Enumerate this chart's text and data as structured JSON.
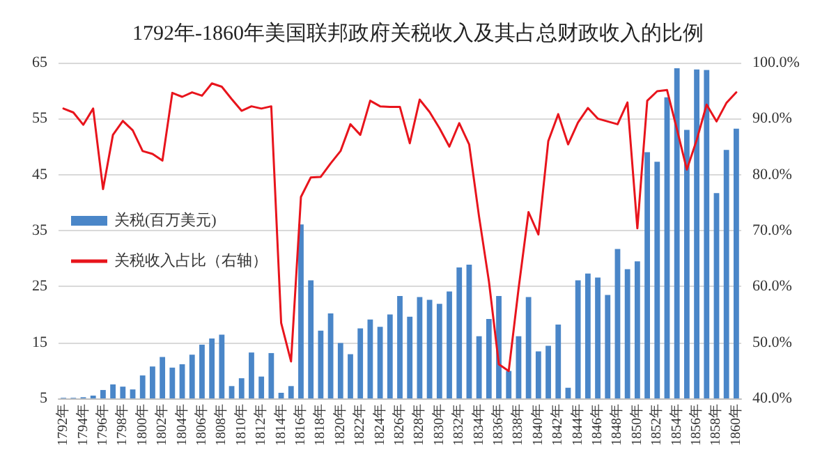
{
  "chart_data": {
    "type": "bar",
    "title": "1792年-1860年美国联邦政府关税收入及其占总财政收入的比例",
    "categories": [
      "1792年",
      null,
      "1794年",
      null,
      "1796年",
      null,
      "1798年",
      null,
      "1800年",
      null,
      "1802年",
      null,
      "1804年",
      null,
      "1806年",
      null,
      "1808年",
      null,
      "1810年",
      null,
      "1812年",
      null,
      "1814年",
      null,
      "1816年",
      null,
      "1818年",
      null,
      "1820年",
      null,
      "1822年",
      null,
      "1824年",
      null,
      "1826年",
      null,
      "1828年",
      null,
      "1830年",
      null,
      "1832年",
      null,
      "1834年",
      null,
      "1836年",
      null,
      "1838年",
      null,
      "1840年",
      null,
      "1842年",
      null,
      "1844年",
      null,
      "1846年",
      null,
      "1848年",
      null,
      "1850年",
      null,
      "1852年",
      null,
      "1854年",
      null,
      "1856年",
      null,
      "1858年",
      null,
      "1860年"
    ],
    "series": [
      {
        "name": "关税(百万美元)",
        "color": "#4a86c8",
        "values": [
          5.1,
          5.1,
          5.2,
          5.5,
          6.5,
          7.5,
          7.1,
          6.6,
          9.1,
          10.7,
          12.4,
          10.5,
          11.1,
          12.8,
          14.6,
          15.7,
          16.4,
          7.2,
          8.6,
          13.2,
          8.9,
          13.1,
          6.0,
          7.2,
          36.1,
          26.1,
          17.1,
          20.2,
          14.9,
          12.9,
          17.5,
          19.1,
          17.8,
          20.0,
          23.3,
          19.6,
          23.1,
          22.6,
          21.9,
          24.1,
          28.4,
          28.9,
          16.1,
          19.2,
          23.3,
          9.9,
          16.1,
          23.1,
          13.4,
          14.4,
          18.2,
          6.9,
          26.1,
          27.3,
          26.6,
          23.5,
          31.7,
          28.1,
          29.5,
          49.0,
          47.3,
          58.8,
          64.0,
          53.0,
          63.8,
          63.7,
          41.7,
          49.4,
          53.2
        ]
      },
      {
        "name": "关税收入占比（右轴）",
        "type": "line",
        "axis": "y2",
        "color": "#e8141c",
        "values": [
          91.8,
          91.1,
          88.9,
          91.8,
          77.4,
          87.1,
          89.6,
          87.9,
          84.2,
          83.7,
          82.5,
          94.6,
          93.9,
          94.7,
          94.1,
          96.3,
          95.7,
          93.5,
          91.4,
          92.2,
          91.8,
          92.2,
          53.5,
          46.6,
          76.0,
          79.5,
          79.6,
          82.0,
          84.2,
          89.0,
          87.1,
          93.2,
          92.2,
          92.1,
          92.1,
          85.6,
          93.4,
          91.2,
          88.3,
          85.0,
          89.2,
          85.4,
          72.5,
          60.9,
          46.1,
          44.9,
          59.7,
          73.3,
          69.3,
          86.0,
          90.8,
          85.4,
          89.3,
          91.9,
          90.0,
          89.5,
          89.0,
          92.9,
          70.4,
          93.2,
          94.9,
          95.1,
          88.1,
          80.9,
          86.2,
          92.5,
          89.5,
          92.8,
          94.7
        ]
      }
    ],
    "ylim": [
      5,
      65
    ],
    "yticks": [
      5,
      15,
      25,
      35,
      45,
      55,
      65
    ],
    "y2lim": [
      40,
      100
    ],
    "y2ticks": [
      {
        "value": 40,
        "label": "40.0%"
      },
      {
        "value": 50,
        "label": "50.0%"
      },
      {
        "value": 60,
        "label": "60.0%"
      },
      {
        "value": 70,
        "label": "70.0%"
      },
      {
        "value": 80,
        "label": "80.0%"
      },
      {
        "value": 90,
        "label": "90.0%"
      },
      {
        "value": 100,
        "label": "100.0%"
      }
    ],
    "grid": "y",
    "legend": "left",
    "marker": "none",
    "line_style": "solid"
  }
}
